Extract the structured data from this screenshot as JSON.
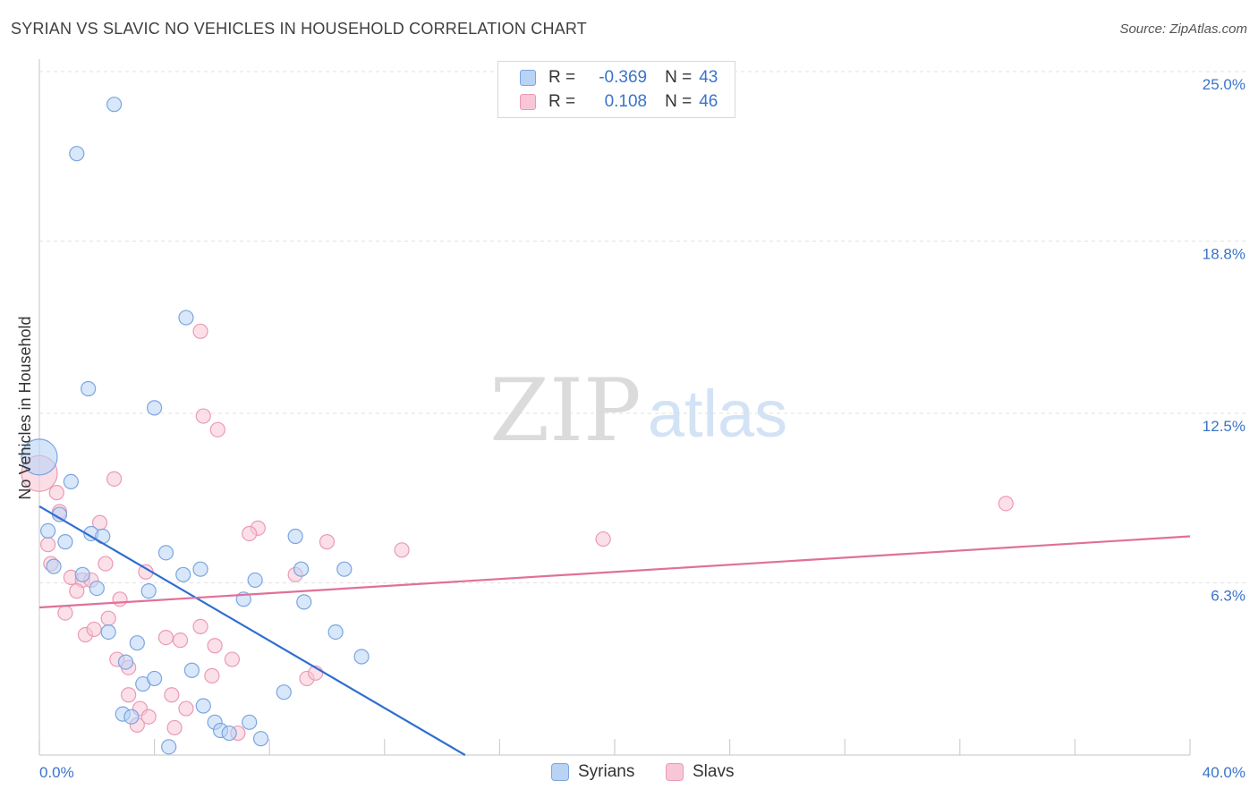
{
  "header": {
    "title": "SYRIAN VS SLAVIC NO VEHICLES IN HOUSEHOLD CORRELATION CHART",
    "source": "Source: ZipAtlas.com"
  },
  "watermark": {
    "zip": "ZIP",
    "atlas": "atlas"
  },
  "legend_top": {
    "rows": [
      {
        "r_label": "R =",
        "r_value": "-0.369",
        "n_label": "N =",
        "n_value": "43"
      },
      {
        "r_label": "R =",
        "r_value": "0.108",
        "n_label": "N =",
        "n_value": "46"
      }
    ]
  },
  "legend_bottom": {
    "items": [
      "Syrians",
      "Slavs"
    ]
  },
  "colors": {
    "syrians_fill": "#b9d3f5",
    "syrians_stroke": "#7aa6e0",
    "syrians_line": "#2f6fcf",
    "slavs_fill": "#f8c6d6",
    "slavs_stroke": "#eb9ab6",
    "slavs_line": "#e0709a",
    "tick_label": "#3a74c9",
    "grid": "#e2e2e2"
  },
  "chart_data": {
    "type": "scatter",
    "title": "SYRIAN VS SLAVIC NO VEHICLES IN HOUSEHOLD CORRELATION CHART",
    "xlabel": "",
    "ylabel": "No Vehicles in Household",
    "xlim": [
      0,
      40
    ],
    "ylim": [
      0,
      25
    ],
    "x_tick_labels": [
      "0.0%",
      "40.0%"
    ],
    "y_ticks": [
      6.3,
      12.5,
      18.8,
      25.0
    ],
    "y_tick_labels": [
      "6.3%",
      "12.5%",
      "18.8%",
      "25.0%"
    ],
    "grid": true,
    "legend": "bottom-center",
    "series": [
      {
        "name": "Syrians",
        "r": -0.369,
        "n": 43,
        "trend": {
          "x0": 0.0,
          "y0": 9.1,
          "x1": 14.8,
          "y1": 0.0
        },
        "points": [
          [
            0.0,
            10.9,
            "large"
          ],
          [
            2.6,
            23.8
          ],
          [
            1.3,
            22.0
          ],
          [
            5.1,
            16.0
          ],
          [
            1.7,
            13.4
          ],
          [
            4.0,
            12.7
          ],
          [
            1.1,
            10.0
          ],
          [
            0.7,
            8.8
          ],
          [
            0.3,
            8.2
          ],
          [
            0.9,
            7.8
          ],
          [
            1.8,
            8.1
          ],
          [
            2.2,
            8.0
          ],
          [
            0.5,
            6.9
          ],
          [
            1.5,
            6.6
          ],
          [
            2.0,
            6.1
          ],
          [
            4.4,
            7.4
          ],
          [
            3.8,
            6.0
          ],
          [
            5.0,
            6.6
          ],
          [
            5.6,
            6.8
          ],
          [
            7.5,
            6.4
          ],
          [
            7.1,
            5.7
          ],
          [
            8.9,
            8.0
          ],
          [
            9.1,
            6.8
          ],
          [
            10.6,
            6.8
          ],
          [
            9.2,
            5.6
          ],
          [
            2.4,
            4.5
          ],
          [
            3.4,
            4.1
          ],
          [
            10.3,
            4.5
          ],
          [
            3.0,
            3.4
          ],
          [
            5.3,
            3.1
          ],
          [
            11.2,
            3.6
          ],
          [
            3.6,
            2.6
          ],
          [
            4.0,
            2.8
          ],
          [
            8.5,
            2.3
          ],
          [
            2.9,
            1.5
          ],
          [
            3.2,
            1.4
          ],
          [
            5.7,
            1.8
          ],
          [
            6.1,
            1.2
          ],
          [
            6.3,
            0.9
          ],
          [
            6.6,
            0.8
          ],
          [
            7.3,
            1.2
          ],
          [
            7.7,
            0.6
          ],
          [
            4.5,
            0.3
          ]
        ]
      },
      {
        "name": "Slavs",
        "r": 0.108,
        "n": 46,
        "trend": {
          "x0": 0.0,
          "y0": 5.4,
          "x1": 40.0,
          "y1": 8.0
        },
        "points": [
          [
            0.0,
            10.3,
            "large"
          ],
          [
            5.6,
            15.5
          ],
          [
            5.7,
            12.4
          ],
          [
            6.2,
            11.9
          ],
          [
            2.6,
            10.1
          ],
          [
            0.6,
            9.6
          ],
          [
            0.7,
            8.9
          ],
          [
            2.1,
            8.5
          ],
          [
            7.6,
            8.3
          ],
          [
            7.3,
            8.1
          ],
          [
            10.0,
            7.8
          ],
          [
            12.6,
            7.5
          ],
          [
            19.6,
            7.9
          ],
          [
            33.6,
            9.2
          ],
          [
            0.3,
            7.7
          ],
          [
            0.4,
            7.0
          ],
          [
            2.3,
            7.0
          ],
          [
            3.7,
            6.7
          ],
          [
            8.9,
            6.6
          ],
          [
            1.1,
            6.5
          ],
          [
            1.5,
            6.4
          ],
          [
            1.8,
            6.4
          ],
          [
            1.3,
            6.0
          ],
          [
            2.8,
            5.7
          ],
          [
            0.9,
            5.2
          ],
          [
            2.4,
            5.0
          ],
          [
            5.6,
            4.7
          ],
          [
            1.6,
            4.4
          ],
          [
            1.9,
            4.6
          ],
          [
            4.4,
            4.3
          ],
          [
            4.9,
            4.2
          ],
          [
            6.1,
            4.0
          ],
          [
            2.7,
            3.5
          ],
          [
            3.1,
            3.2
          ],
          [
            6.7,
            3.5
          ],
          [
            6.0,
            2.9
          ],
          [
            9.3,
            2.8
          ],
          [
            9.6,
            3.0
          ],
          [
            3.1,
            2.2
          ],
          [
            4.6,
            2.2
          ],
          [
            3.5,
            1.7
          ],
          [
            5.1,
            1.7
          ],
          [
            3.4,
            1.1
          ],
          [
            3.8,
            1.4
          ],
          [
            4.7,
            1.0
          ],
          [
            6.9,
            0.8
          ]
        ]
      }
    ]
  }
}
